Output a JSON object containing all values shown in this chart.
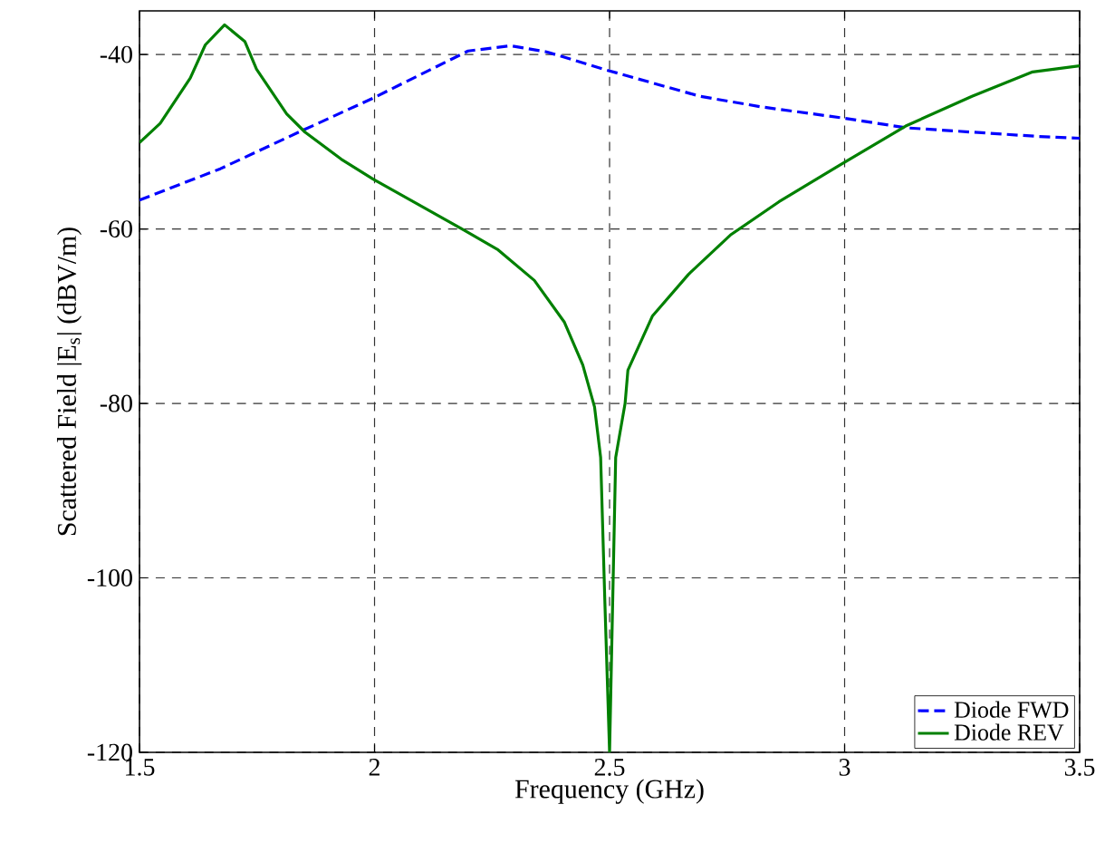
{
  "chart_data": {
    "type": "line",
    "xlabel": "Frequency (GHz)",
    "ylabel": "Scattered Field |E$_{s}$| (dBV/m)",
    "xlim": [
      1.5,
      3.5
    ],
    "ylim": [
      -120,
      -35
    ],
    "xticks": [
      1.5,
      2,
      2.5,
      3,
      3.5
    ],
    "yticks": [
      -120,
      -100,
      -80,
      -60,
      -40
    ],
    "grid": true,
    "legend": "bottom right",
    "series": [
      {
        "name": "Diode FWD",
        "color": "#0000ff",
        "line_style": "dashed",
        "x": [
          1.5,
          1.672,
          1.839,
          1.997,
          2.109,
          2.199,
          2.289,
          2.366,
          2.488,
          2.693,
          2.822,
          2.999,
          3.13,
          3.271,
          3.413,
          3.5
        ],
        "values": [
          -56.7,
          -53.1,
          -48.9,
          -45.0,
          -42.0,
          -39.6,
          -39.0,
          -39.7,
          -41.7,
          -44.8,
          -46.0,
          -47.3,
          -48.4,
          -48.9,
          -49.4,
          -49.6
        ]
      },
      {
        "name": "Diode REV",
        "color": "#008000",
        "line_style": "solid",
        "x": [
          1.5,
          1.544,
          1.608,
          1.64,
          1.681,
          1.724,
          1.749,
          1.813,
          1.852,
          1.929,
          1.997,
          2.083,
          2.186,
          2.263,
          2.34,
          2.404,
          2.443,
          2.468,
          2.481,
          2.49,
          2.5,
          2.513,
          2.533,
          2.539,
          2.591,
          2.668,
          2.757,
          2.86,
          2.989,
          3.13,
          3.271,
          3.4,
          3.5
        ],
        "values": [
          -50.1,
          -47.9,
          -42.7,
          -38.9,
          -36.6,
          -38.5,
          -41.7,
          -46.8,
          -48.9,
          -52.0,
          -54.3,
          -56.9,
          -60.0,
          -62.4,
          -65.9,
          -70.7,
          -75.6,
          -80.4,
          -86.2,
          -102.8,
          -120,
          -86.2,
          -80.0,
          -76.2,
          -70.0,
          -65.2,
          -60.7,
          -56.9,
          -52.7,
          -48.2,
          -44.8,
          -42.0,
          -41.3
        ]
      }
    ]
  }
}
